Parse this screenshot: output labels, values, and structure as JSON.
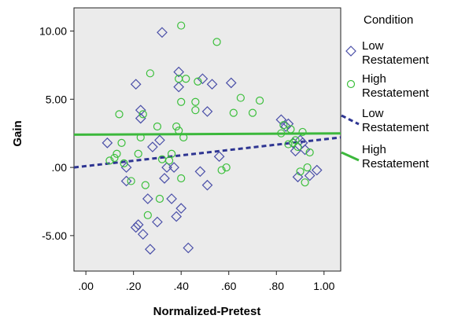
{
  "chart_data": {
    "type": "scatter",
    "xlabel": "Normalized-Pretest",
    "ylabel": "Gain",
    "xlim": [
      -0.05,
      1.07
    ],
    "ylim": [
      -7.6,
      11.7
    ],
    "xticks": [
      0.0,
      0.2,
      0.4,
      0.6,
      0.8,
      1.0
    ],
    "xtick_labels": [
      ".00",
      ".20",
      ".40",
      ".60",
      ".80",
      "1.00"
    ],
    "yticks": [
      -5.0,
      0.0,
      5.0,
      10.0
    ],
    "ytick_labels": [
      "-5.00",
      ".00",
      "5.00",
      "10.00"
    ],
    "grid": false,
    "legend_title": "Condition",
    "legend_position": "right",
    "series": [
      {
        "name": "Low Restatement",
        "marker": "diamond",
        "color": "#4a4fa8",
        "points": [
          [
            0.09,
            1.8
          ],
          [
            0.17,
            0.0
          ],
          [
            0.17,
            -1.0
          ],
          [
            0.21,
            6.1
          ],
          [
            0.21,
            -4.4
          ],
          [
            0.22,
            -4.2
          ],
          [
            0.23,
            3.6
          ],
          [
            0.23,
            4.2
          ],
          [
            0.24,
            -4.9
          ],
          [
            0.26,
            -2.3
          ],
          [
            0.27,
            -6.0
          ],
          [
            0.28,
            1.5
          ],
          [
            0.3,
            -4.0
          ],
          [
            0.31,
            2.0
          ],
          [
            0.32,
            9.9
          ],
          [
            0.33,
            -0.8
          ],
          [
            0.34,
            0.0
          ],
          [
            0.36,
            -2.3
          ],
          [
            0.37,
            0.0
          ],
          [
            0.38,
            -3.6
          ],
          [
            0.39,
            7.0
          ],
          [
            0.39,
            5.9
          ],
          [
            0.4,
            -3.0
          ],
          [
            0.43,
            -5.9
          ],
          [
            0.48,
            -0.3
          ],
          [
            0.49,
            6.5
          ],
          [
            0.51,
            -1.3
          ],
          [
            0.51,
            4.1
          ],
          [
            0.53,
            6.1
          ],
          [
            0.56,
            0.8
          ],
          [
            0.61,
            6.2
          ],
          [
            0.82,
            3.5
          ],
          [
            0.84,
            3.0
          ],
          [
            0.85,
            3.2
          ],
          [
            0.87,
            1.8
          ],
          [
            0.88,
            1.2
          ],
          [
            0.89,
            -0.7
          ],
          [
            0.9,
            2.0
          ],
          [
            0.91,
            1.8
          ],
          [
            0.92,
            1.3
          ],
          [
            0.94,
            -0.6
          ],
          [
            0.97,
            -0.2
          ]
        ]
      },
      {
        "name": "High Restatement",
        "marker": "circle",
        "color": "#3bbf3b",
        "points": [
          [
            0.1,
            0.5
          ],
          [
            0.12,
            0.7
          ],
          [
            0.13,
            1.0
          ],
          [
            0.14,
            3.9
          ],
          [
            0.15,
            1.8
          ],
          [
            0.16,
            0.3
          ],
          [
            0.19,
            -1.0
          ],
          [
            0.22,
            1.0
          ],
          [
            0.23,
            2.2
          ],
          [
            0.24,
            3.9
          ],
          [
            0.25,
            -1.3
          ],
          [
            0.26,
            -3.5
          ],
          [
            0.27,
            6.9
          ],
          [
            0.3,
            3.0
          ],
          [
            0.31,
            -2.3
          ],
          [
            0.32,
            0.6
          ],
          [
            0.35,
            0.5
          ],
          [
            0.36,
            1.0
          ],
          [
            0.38,
            3.0
          ],
          [
            0.39,
            6.5
          ],
          [
            0.39,
            2.7
          ],
          [
            0.4,
            10.4
          ],
          [
            0.4,
            4.8
          ],
          [
            0.41,
            2.2
          ],
          [
            0.42,
            6.5
          ],
          [
            0.46,
            4.2
          ],
          [
            0.46,
            4.8
          ],
          [
            0.47,
            6.3
          ],
          [
            0.55,
            9.2
          ],
          [
            0.57,
            -0.2
          ],
          [
            0.59,
            0.0
          ],
          [
            0.62,
            4.0
          ],
          [
            0.65,
            5.1
          ],
          [
            0.7,
            4.0
          ],
          [
            0.73,
            4.9
          ],
          [
            0.82,
            2.5
          ],
          [
            0.83,
            3.1
          ],
          [
            0.85,
            1.7
          ],
          [
            0.86,
            2.8
          ],
          [
            0.87,
            1.8
          ],
          [
            0.88,
            2.0
          ],
          [
            0.89,
            1.5
          ],
          [
            0.9,
            -0.3
          ],
          [
            0.91,
            2.6
          ],
          [
            0.92,
            -1.1
          ],
          [
            0.93,
            0.0
          ],
          [
            0.94,
            1.1
          ],
          [
            0.4,
            -0.8
          ]
        ]
      }
    ],
    "fit_lines": [
      {
        "name": "Low Restatement",
        "style": "dashed",
        "color": "#2e3592",
        "x": [
          -0.05,
          1.07
        ],
        "y": [
          0.0,
          2.2
        ]
      },
      {
        "name": "High Restatement",
        "style": "solid",
        "color": "#3cb83c",
        "x": [
          -0.05,
          1.07
        ],
        "y": [
          2.4,
          2.5
        ]
      }
    ],
    "legend_entries": [
      {
        "line1": "Low",
        "line2": "Restatement",
        "symbol": "diamond",
        "color": "#4a4fa8"
      },
      {
        "line1": "High",
        "line2": "Restatement",
        "symbol": "circle",
        "color": "#3bbf3b"
      },
      {
        "line1": "Low",
        "line2": "Restatement",
        "symbol": "dashed-line",
        "color": "#2e3592"
      },
      {
        "line1": "High",
        "line2": "Restatement",
        "symbol": "solid-line",
        "color": "#3cb83c"
      }
    ]
  }
}
